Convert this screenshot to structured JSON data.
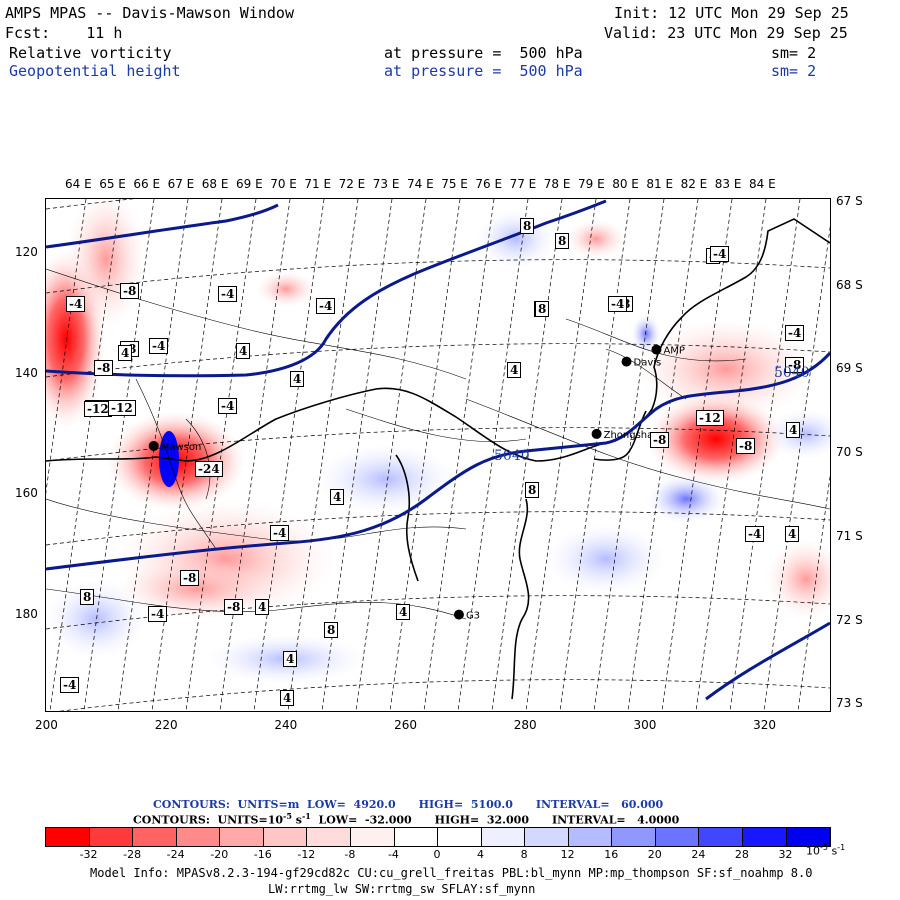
{
  "header": {
    "title": "AMPS MPAS -- Davis-Mawson Window",
    "fcst": "Fcst:    11 h",
    "init": "Init: 12 UTC Mon 29 Sep 25",
    "valid": "Valid: 23 UTC Mon 29 Sep 25",
    "field1": "Relative vorticity",
    "field2": "Geopotential height",
    "pressure1": "at pressure =  500 hPa",
    "pressure2": "at pressure =  500 hPa",
    "sm1": "sm= 2",
    "sm2": "sm= 2"
  },
  "map": {
    "lon_labels": [
      "64 E",
      "65 E",
      "66 E",
      "67 E",
      "68 E",
      "69 E",
      "70 E",
      "71 E",
      "72 E",
      "73 E",
      "74 E",
      "75 E",
      "76 E",
      "77 E",
      "78 E",
      "79 E",
      "80 E",
      "81 E",
      "82 E",
      "83 E",
      "84 E"
    ],
    "lat_labels": [
      "67 S",
      "68 S",
      "69 S",
      "70 S",
      "71 S",
      "72 S",
      "73 S"
    ],
    "station_labels": [
      "Mawson",
      "Davis",
      "Zhongshan",
      "G3",
      "AMP"
    ],
    "height_labels": [
      "5040",
      "5040"
    ],
    "vorticity_labels": [
      "-8",
      "-4",
      "-4",
      "-8",
      "4",
      "-4",
      "4",
      "-4",
      "4",
      "8",
      "-4",
      "-8",
      "-12",
      "-8",
      "8",
      "-4",
      "-12",
      "8",
      "-8",
      "-4",
      "8",
      "4",
      "4",
      "8",
      "4",
      "-4",
      "-24",
      "-8",
      "-12",
      "-8",
      "4",
      "4",
      "4",
      "8",
      "4",
      "-4",
      "4",
      "-4",
      "-4",
      "-8",
      "-12",
      "-8",
      "8",
      "-4",
      "4"
    ]
  },
  "chart_data": {
    "type": "heatmap",
    "title": "Relative vorticity / Geopotential height at 500 hPa",
    "x_ticks": [
      200,
      220,
      240,
      260,
      280,
      300,
      320
    ],
    "y_ticks": [
      120,
      140,
      160,
      180
    ],
    "xlim": [
      200,
      331
    ],
    "ylim": [
      111,
      196
    ],
    "contour_heights": {
      "units": "m",
      "low": 4920.0,
      "high": 5100.0,
      "interval": 60.0,
      "labeled_levels": [
        5040,
        5040
      ]
    },
    "contour_vorticity": {
      "units": "10^-5 s^-1",
      "low": -32.0,
      "high": 32.0,
      "interval": 4.0
    },
    "colorbar_levels": [
      -32,
      -28,
      -24,
      -20,
      -16,
      -12,
      -8,
      -4,
      0,
      4,
      8,
      12,
      16,
      20,
      24,
      28,
      32
    ],
    "colorbar_colors": [
      "#ff0000",
      "#ff3a3a",
      "#ff6363",
      "#ff8a8a",
      "#ffa9a9",
      "#ffc6c6",
      "#ffdcdc",
      "#fff0f0",
      "#ffffff",
      "#ffffff",
      "#eef0ff",
      "#d4d8ff",
      "#b4bcff",
      "#9098ff",
      "#6c74ff",
      "#4048ff",
      "#1818ff",
      "#0000f0"
    ],
    "stations": [
      {
        "name": "Mawson",
        "x": 218,
        "y": 152
      },
      {
        "name": "Davis",
        "x": 297,
        "y": 138
      },
      {
        "name": "AMP",
        "x": 302,
        "y": 136
      },
      {
        "name": "Zhongshan",
        "x": 292,
        "y": 150
      },
      {
        "name": "G3",
        "x": 269,
        "y": 180
      }
    ]
  },
  "legend": {
    "contours_height": "CONTOURS:  UNITS=m  LOW=  4920.0      HIGH=  5100.0      INTERVAL=   60.000",
    "contours_vort": "CONTOURS:  UNITS=10",
    "contours_vort_exp": "-5",
    "contours_vort_s": " s",
    "contours_vort_exp2": "-1",
    "contours_vort_rest": "  LOW=  -32.000      HIGH=  32.000      INTERVAL=   4.0000",
    "cbar_units": "10",
    "cbar_units_exp": "-5",
    "cbar_units_s": "s",
    "cbar_units_exp2": "-1"
  },
  "footer": {
    "line1": "Model Info: MPASv8.2.3-194-gf29cd82c CU:cu_grell_freitas PBL:bl_mynn MP:mp_thompson SF:sf_noahmp 8.0",
    "line2": "LW:rrtmg_lw SW:rrtmg_sw SFLAY:sf_mynn"
  }
}
